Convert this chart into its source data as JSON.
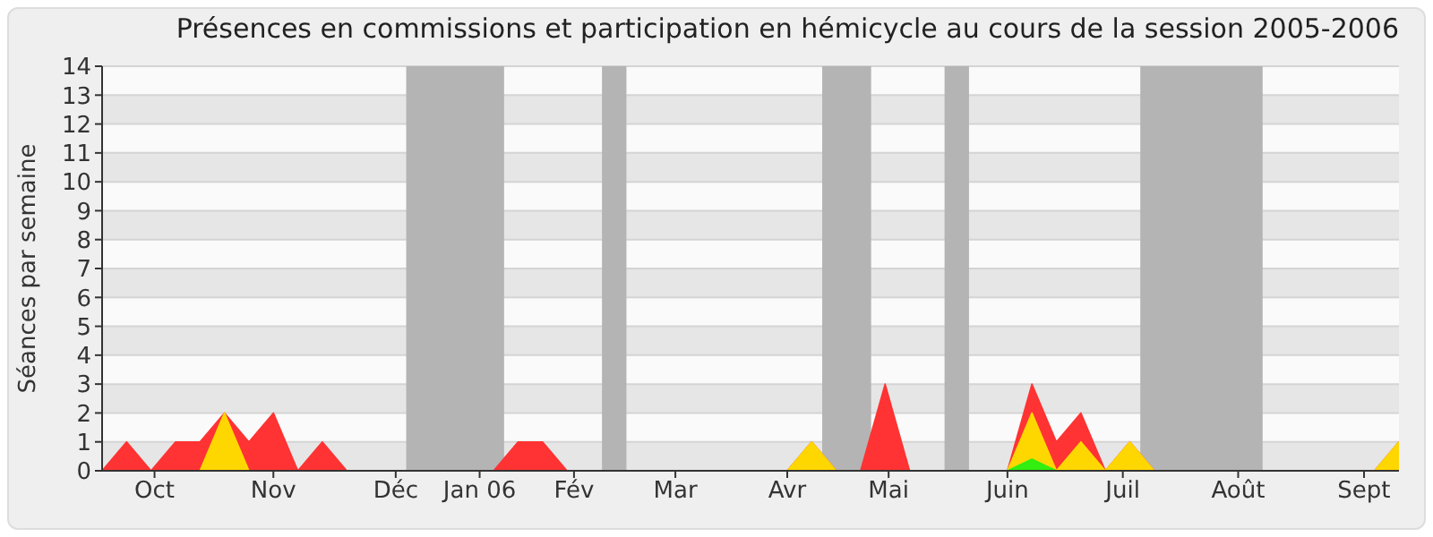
{
  "chart_data": {
    "type": "area",
    "title": "Présences en commissions et participation en hémicycle au cours de la session 2005-2006",
    "ylabel": "Séances par semaine",
    "x": [
      "2005-10-01",
      "2005-10-08",
      "2005-10-15",
      "2005-10-22",
      "2005-10-29",
      "2005-11-05",
      "2005-11-12",
      "2005-11-19",
      "2005-11-26",
      "2005-12-03",
      "2005-12-10",
      "2005-12-17",
      "2005-12-24",
      "2005-12-31",
      "2006-01-07",
      "2006-01-14",
      "2006-01-21",
      "2006-01-28",
      "2006-02-04",
      "2006-02-11",
      "2006-02-18",
      "2006-02-25",
      "2006-03-04",
      "2006-03-11",
      "2006-03-18",
      "2006-03-25",
      "2006-04-01",
      "2006-04-08",
      "2006-04-15",
      "2006-04-22",
      "2006-04-29",
      "2006-05-06",
      "2006-05-13",
      "2006-05-20",
      "2006-05-27",
      "2006-06-03",
      "2006-06-10",
      "2006-06-17",
      "2006-06-24",
      "2006-07-01",
      "2006-07-08",
      "2006-07-15",
      "2006-07-22",
      "2006-07-29",
      "2006-08-05",
      "2006-08-12",
      "2006-08-19",
      "2006-08-26",
      "2006-09-02",
      "2006-09-09",
      "2006-09-16",
      "2006-09-23",
      "2006-09-30",
      "2006-10-07"
    ],
    "series": [
      {
        "color": "#ff3333",
        "values": [
          0,
          1,
          0,
          1,
          1,
          2,
          1,
          2,
          0,
          1,
          0,
          0,
          0,
          0,
          0,
          0,
          0,
          1,
          1,
          0,
          0,
          0,
          0,
          0,
          0,
          0,
          0,
          0,
          0,
          1,
          0,
          0,
          3,
          0,
          0,
          0,
          0,
          0,
          3,
          1,
          2,
          0,
          1,
          0,
          0,
          0,
          0,
          0,
          0,
          0,
          0,
          0,
          0,
          1
        ]
      },
      {
        "color": "#ffd700",
        "values": [
          0,
          0,
          0,
          0,
          0,
          2,
          0,
          0,
          0,
          0,
          0,
          0,
          0,
          0,
          0,
          0,
          0,
          0,
          0,
          0,
          0,
          0,
          0,
          0,
          0,
          0,
          0,
          0,
          0,
          1,
          0,
          0,
          0,
          0,
          0,
          0,
          0,
          0,
          2,
          0,
          1,
          0,
          1,
          0,
          0,
          0,
          0,
          0,
          0,
          0,
          0,
          0,
          0,
          1
        ]
      },
      {
        "color": "#33ee11",
        "values": [
          0,
          0,
          0,
          0,
          0,
          0,
          0,
          0,
          0,
          0,
          0,
          0,
          0,
          0,
          0,
          0,
          0,
          0,
          0,
          0,
          0,
          0,
          0,
          0,
          0,
          0,
          0,
          0,
          0,
          0,
          0,
          0,
          0,
          0,
          0,
          0,
          0,
          0,
          0.4,
          0,
          0,
          0,
          0,
          0,
          0,
          0,
          0,
          0,
          0,
          0,
          0,
          0,
          0,
          0
        ]
      }
    ],
    "xlim": [
      "2005-10-01",
      "2006-10-07"
    ],
    "xticks": [
      {
        "value": "2005-10-16",
        "label": "Oct"
      },
      {
        "value": "2005-11-19",
        "label": "Nov"
      },
      {
        "value": "2005-12-24",
        "label": "Déc"
      },
      {
        "value": "2006-01-17",
        "label": "Jan 06"
      },
      {
        "value": "2006-02-13",
        "label": "Fév"
      },
      {
        "value": "2006-03-14",
        "label": "Mar"
      },
      {
        "value": "2006-04-15",
        "label": "Avr"
      },
      {
        "value": "2006-05-14",
        "label": "Mai"
      },
      {
        "value": "2006-06-17",
        "label": "Juin"
      },
      {
        "value": "2006-07-20",
        "label": "Juil"
      },
      {
        "value": "2006-08-22",
        "label": "Août"
      },
      {
        "value": "2006-09-27",
        "label": "Sept"
      }
    ],
    "ylim": [
      0,
      14
    ],
    "yticks": [
      0,
      1,
      2,
      3,
      4,
      5,
      6,
      7,
      8,
      9,
      10,
      11,
      12,
      13,
      14
    ],
    "grid": "y",
    "bands": [
      {
        "axis": "x",
        "from": "2005-12-27",
        "to": "2006-01-24",
        "color": "#b4b4b4"
      },
      {
        "axis": "x",
        "from": "2006-02-21",
        "to": "2006-02-28",
        "color": "#b4b4b4"
      },
      {
        "axis": "x",
        "from": "2006-04-25",
        "to": "2006-05-09",
        "color": "#b4b4b4"
      },
      {
        "axis": "x",
        "from": "2006-05-30",
        "to": "2006-06-06",
        "color": "#b4b4b4"
      },
      {
        "axis": "x",
        "from": "2006-07-25",
        "to": "2006-08-29",
        "color": "#b4b4b4"
      }
    ]
  }
}
